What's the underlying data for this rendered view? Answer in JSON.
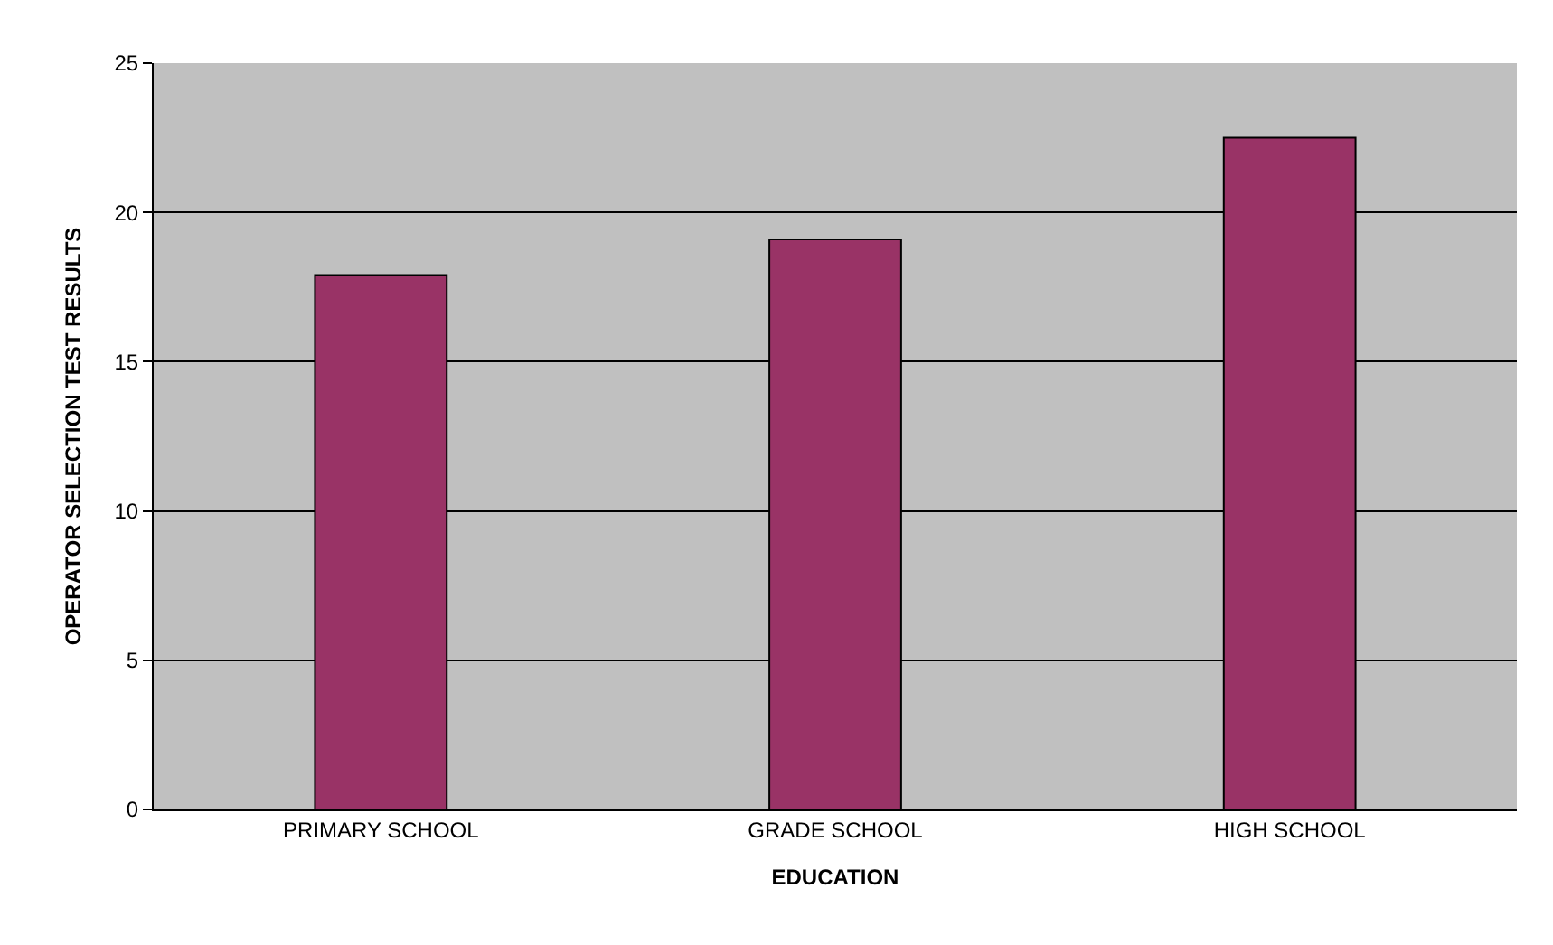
{
  "chart_data": {
    "type": "bar",
    "xlabel": "EDUCATION",
    "ylabel": "OPERATOR SELECTION TEST RESULTS",
    "categories": [
      "PRIMARY SCHOOL",
      "GRADE SCHOOL",
      "HIGH SCHOOL"
    ],
    "values": [
      17.9,
      19.1,
      22.5
    ],
    "color": "#993366",
    "ylim": [
      0,
      25
    ],
    "yticks": [
      0,
      5,
      10,
      15,
      20,
      25
    ],
    "grid": "y",
    "legend": false
  }
}
